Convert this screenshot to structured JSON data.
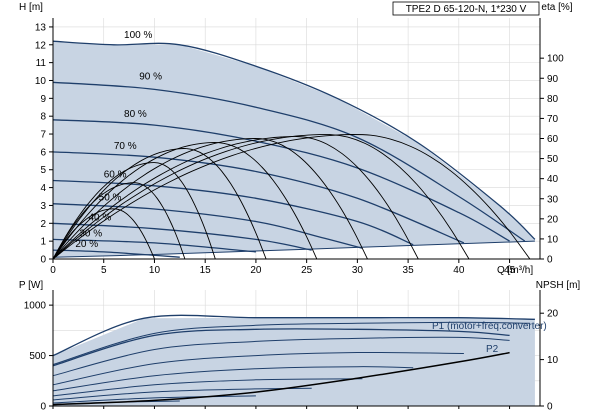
{
  "chart_data": [
    {
      "type": "line",
      "title": "TPE2 D 65-120-N, 1*230 V",
      "xlabel": "Q [m³/h]",
      "ylabel_left": "H [m]",
      "ylabel_right": "eta [%]",
      "xlim": [
        0,
        48
      ],
      "ylim": [
        0,
        13.5
      ],
      "ylim_right": [
        0,
        120
      ],
      "x_ticks": [
        0,
        5,
        10,
        15,
        20,
        25,
        30,
        35,
        40,
        45
      ],
      "y_ticks": [
        0,
        1,
        2,
        3,
        4,
        5,
        6,
        7,
        8,
        9,
        10,
        11,
        12,
        13
      ],
      "y_right_ticks": [
        0,
        10,
        20,
        30,
        40,
        50,
        60,
        70,
        80,
        90,
        100
      ],
      "grid": true,
      "operating_area_fill": "#c8d4e3",
      "curve_color": "#1f3f6b",
      "efficiency_color": "#000000",
      "speed_labels": [
        "100 %",
        "90 %",
        "80 %",
        "70 %",
        "60 %",
        "50 %",
        "40 %",
        "30 %",
        "20 %"
      ],
      "series": [
        {
          "name": "100 %",
          "x": [
            0,
            6,
            12.5,
            20,
            28,
            36,
            44,
            47.5
          ],
          "y": [
            12.2,
            12.0,
            12.0,
            10.8,
            9.0,
            6.5,
            3.0,
            1.1
          ]
        },
        {
          "name": "90 %",
          "x": [
            0,
            10,
            20,
            30,
            40,
            46.5
          ],
          "y": [
            9.9,
            9.5,
            8.5,
            6.8,
            3.5,
            1.0
          ]
        },
        {
          "name": "80 %",
          "x": [
            0,
            10,
            20,
            30,
            40,
            45
          ],
          "y": [
            7.8,
            7.5,
            6.6,
            5.1,
            2.6,
            1.0
          ]
        },
        {
          "name": "70 %",
          "x": [
            0,
            10,
            20,
            30,
            40.5
          ],
          "y": [
            6.0,
            5.7,
            4.9,
            3.4,
            0.9
          ]
        },
        {
          "name": "60 %",
          "x": [
            0,
            10,
            20,
            30,
            35.5
          ],
          "y": [
            4.4,
            4.1,
            3.4,
            2.1,
            0.8
          ]
        },
        {
          "name": "50 %",
          "x": [
            0,
            10,
            20,
            26.5,
            30.5
          ],
          "y": [
            3.1,
            2.8,
            2.1,
            1.2,
            0.6
          ]
        },
        {
          "name": "40 %",
          "x": [
            0,
            10,
            20,
            25.5
          ],
          "y": [
            2.0,
            1.7,
            1.1,
            0.5
          ]
        },
        {
          "name": "30 %",
          "x": [
            0,
            10,
            20
          ],
          "y": [
            1.1,
            0.9,
            0.4
          ]
        },
        {
          "name": "20 %",
          "x": [
            0,
            5,
            12.5
          ],
          "y": [
            0.5,
            0.4,
            0.1
          ]
        }
      ],
      "minimum_curve": {
        "x": [
          0,
          10,
          20,
          30,
          40,
          47.5
        ],
        "y": [
          0.1,
          0.25,
          0.45,
          0.65,
          0.85,
          1.0
        ]
      },
      "efficiency_peaks": [
        {
          "x_peak": 6,
          "eta_peak": 25,
          "x_end": 10
        },
        {
          "x_peak": 8,
          "eta_peak": 38,
          "x_end": 13
        },
        {
          "x_peak": 10,
          "eta_peak": 48,
          "x_end": 16
        },
        {
          "x_peak": 13,
          "eta_peak": 55,
          "x_end": 21
        },
        {
          "x_peak": 16,
          "eta_peak": 58,
          "x_end": 26
        },
        {
          "x_peak": 20,
          "eta_peak": 60,
          "x_end": 31
        },
        {
          "x_peak": 24,
          "eta_peak": 61,
          "x_end": 36
        },
        {
          "x_peak": 27,
          "eta_peak": 62,
          "x_end": 41
        },
        {
          "x_peak": 30,
          "eta_peak": 62,
          "x_end": 47
        }
      ]
    },
    {
      "type": "line",
      "xlabel": "",
      "ylabel_left": "P [W]",
      "ylabel_right": "NPSH [m]",
      "xlim": [
        0,
        48
      ],
      "ylim": [
        0,
        1150
      ],
      "ylim_right": [
        0,
        25
      ],
      "y_ticks": [
        0,
        500,
        1000
      ],
      "y_right_ticks": [
        0,
        10,
        20
      ],
      "grid": true,
      "series": [
        {
          "name": "P1 (motor+freq.converter)",
          "x": [
            0,
            9,
            20,
            30,
            40,
            47.5
          ],
          "y": [
            500,
            870,
            875,
            875,
            875,
            860
          ]
        },
        {
          "name": "P2",
          "x": [
            0,
            10,
            20,
            30,
            40,
            45
          ],
          "y": [
            400,
            700,
            760,
            760,
            740,
            700
          ]
        }
      ],
      "power_curves": [
        {
          "x": [
            0,
            10,
            20,
            30,
            40,
            47
          ],
          "y": [
            410,
            720,
            800,
            820,
            830,
            820
          ]
        },
        {
          "x": [
            0,
            10,
            20,
            30,
            40,
            45
          ],
          "y": [
            300,
            560,
            640,
            670,
            680,
            650
          ]
        },
        {
          "x": [
            0,
            10,
            20,
            30,
            40.5
          ],
          "y": [
            210,
            420,
            500,
            530,
            520
          ]
        },
        {
          "x": [
            0,
            10,
            20,
            30,
            35.5
          ],
          "y": [
            150,
            300,
            370,
            390,
            380
          ]
        },
        {
          "x": [
            0,
            10,
            20,
            30.5
          ],
          "y": [
            100,
            210,
            260,
            270
          ]
        },
        {
          "x": [
            0,
            10,
            20,
            25.5
          ],
          "y": [
            60,
            140,
            170,
            175
          ]
        },
        {
          "x": [
            0,
            10,
            20
          ],
          "y": [
            30,
            80,
            100
          ]
        },
        {
          "x": [
            0,
            5,
            12.5
          ],
          "y": [
            15,
            35,
            50
          ]
        }
      ],
      "npsh_curve": {
        "x": [
          0,
          10,
          20,
          30,
          40,
          45
        ],
        "y": [
          0.3,
          1.2,
          3.0,
          6.0,
          9.5,
          11.5
        ]
      }
    }
  ]
}
